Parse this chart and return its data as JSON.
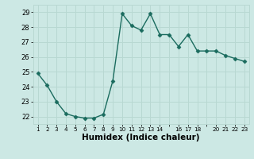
{
  "x": [
    1,
    2,
    3,
    4,
    5,
    6,
    7,
    8,
    9,
    10,
    11,
    12,
    13,
    14,
    15,
    16,
    17,
    18,
    19,
    20,
    21,
    22,
    23
  ],
  "y": [
    24.9,
    24.1,
    23.0,
    22.2,
    22.0,
    21.9,
    21.9,
    22.15,
    24.4,
    28.9,
    28.1,
    27.8,
    28.9,
    27.5,
    27.5,
    26.7,
    27.5,
    26.4,
    26.4,
    26.4,
    26.1,
    25.9,
    25.7
  ],
  "line_color": "#1a6b5e",
  "bg_color": "#cce8e4",
  "grid_color": "#b8d8d2",
  "xlabel": "Humidex (Indice chaleur)",
  "xlabel_fontsize": 7.5,
  "ylabel_ticks": [
    22,
    23,
    24,
    25,
    26,
    27,
    28,
    29
  ],
  "xlim": [
    0.5,
    23.5
  ],
  "ylim": [
    21.5,
    29.5
  ],
  "marker": "D",
  "marker_size": 2.5,
  "line_width": 1.0,
  "xtick_labels": [
    "1",
    "2",
    "3",
    "4",
    "5",
    "6",
    "7",
    "8",
    "9",
    "10",
    "11",
    "12",
    "13",
    "14",
    "",
    "16",
    "17",
    "18",
    "",
    "20",
    "21",
    "22",
    "23"
  ]
}
